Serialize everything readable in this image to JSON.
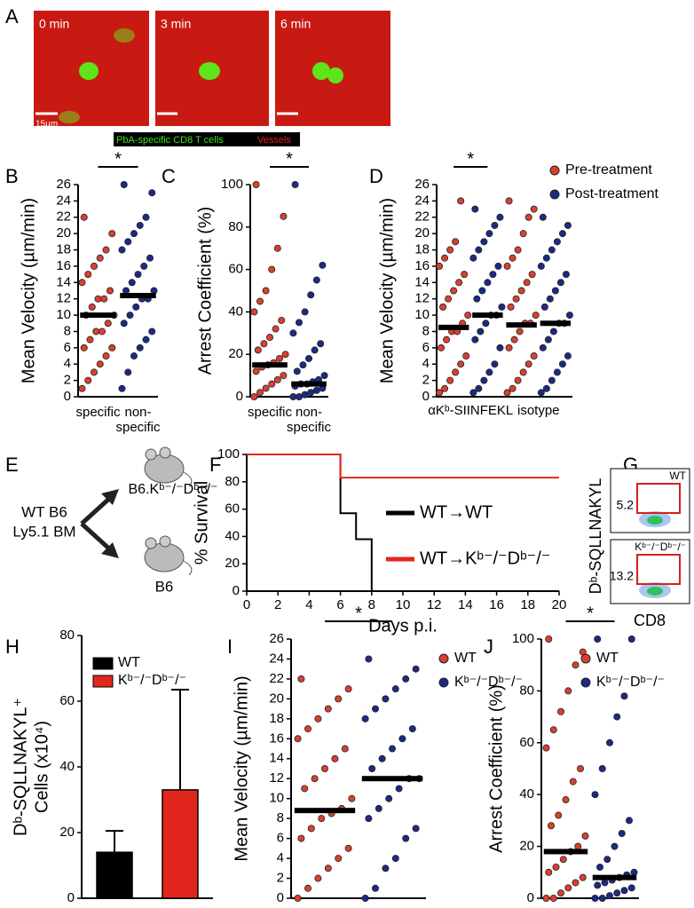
{
  "panel_a": {
    "label": "A",
    "frames": [
      "0 min",
      "3 min",
      "6 min"
    ],
    "scale": "15µm",
    "legend": [
      "PbA-specific CD8 T cells",
      "Vessels"
    ]
  },
  "panel_e": {
    "label": "E",
    "donor": [
      "WT B6",
      "Ly5.1 BM"
    ],
    "recipients": [
      "B6.Kᵇ⁻/⁻Dᵇ⁻/⁻",
      "B6"
    ]
  },
  "panel_g": {
    "label": "G",
    "ylabel": "Dᵇ-SQLLNAKYL",
    "xlabel": "CD8",
    "plots": [
      {
        "label": "WT",
        "gate": 5.2
      },
      {
        "label": "Kᵇ⁻/⁻Dᵇ⁻/⁻",
        "gate": 13.2
      }
    ]
  },
  "chart_data": [
    {
      "type": "dot",
      "panel": "B",
      "ylabel": "Mean Velocity (µm/min)",
      "ylim": [
        0,
        26
      ],
      "yticks": [
        0,
        2,
        4,
        6,
        8,
        10,
        12,
        14,
        16,
        18,
        20,
        22,
        24,
        26
      ],
      "significance": "*",
      "groups": [
        {
          "label": "specific",
          "color": "#d9402f",
          "median": 10,
          "values": [
            1,
            2,
            3,
            4,
            5,
            6,
            6,
            7,
            8,
            8,
            9,
            10,
            10,
            11,
            12,
            12,
            13,
            14,
            15,
            16,
            17,
            18,
            20,
            22
          ]
        },
        {
          "label": "non-specific",
          "color": "#1c2a86",
          "median": 12.4,
          "values": [
            1,
            3,
            5,
            6,
            7,
            8,
            9,
            10,
            11,
            12,
            12,
            13,
            13,
            14,
            15,
            16,
            17,
            18,
            19,
            20,
            21,
            22,
            25,
            26
          ]
        }
      ]
    },
    {
      "type": "dot",
      "panel": "C",
      "ylabel": "Arrest Coefficient (%)",
      "ylim": [
        0,
        100
      ],
      "yticks": [
        0,
        20,
        40,
        60,
        80,
        100
      ],
      "significance": "*",
      "groups": [
        {
          "label": "specific",
          "color": "#d9402f",
          "median": 15,
          "values": [
            0,
            2,
            4,
            6,
            8,
            10,
            12,
            14,
            15,
            16,
            18,
            20,
            22,
            25,
            28,
            32,
            36,
            40,
            45,
            50,
            60,
            70,
            85,
            100
          ]
        },
        {
          "label": "non-specific",
          "color": "#1c2a86",
          "median": 6,
          "values": [
            0,
            0,
            1,
            2,
            3,
            4,
            5,
            6,
            6,
            7,
            8,
            10,
            12,
            15,
            18,
            22,
            25,
            30,
            35,
            40,
            48,
            55,
            62,
            100
          ]
        }
      ]
    },
    {
      "type": "grouped-dot",
      "panel": "D",
      "ylabel": "Mean Velocity (µm/min)",
      "ylim": [
        0,
        26
      ],
      "yticks": [
        0,
        2,
        4,
        6,
        8,
        10,
        12,
        14,
        16,
        18,
        20,
        22,
        24,
        26
      ],
      "significance": "*",
      "categories": [
        "αKᵇ-SIINFEKL",
        "isotype"
      ],
      "series": [
        {
          "name": "Pre-treatment",
          "color": "#d9402f",
          "median": [
            8.5,
            8.8
          ],
          "values": [
            [
              0.5,
              1,
              2,
              3,
              4,
              5,
              6,
              7,
              8,
              8,
              9,
              10,
              11,
              12,
              13,
              14,
              15,
              16,
              17,
              18,
              19,
              24
            ],
            [
              0.5,
              1,
              2,
              3,
              4,
              5,
              6,
              7,
              8,
              9,
              9,
              10,
              11,
              12,
              13,
              14,
              15,
              16,
              17,
              18,
              20,
              22,
              23,
              24
            ]
          ]
        },
        {
          "name": "Post-treatment",
          "color": "#1c2a86",
          "median": [
            10,
            9
          ],
          "values": [
            [
              0.5,
              1,
              2,
              3,
              4,
              6,
              7,
              8,
              9,
              10,
              10,
              11,
              12,
              13,
              14,
              15,
              16,
              17,
              18,
              19,
              20,
              21,
              22,
              23
            ],
            [
              0.5,
              1,
              2,
              3,
              4,
              5,
              6,
              7,
              8,
              9,
              9,
              10,
              11,
              12,
              13,
              14,
              15,
              16,
              17,
              18,
              19,
              20,
              21,
              22
            ]
          ]
        }
      ]
    },
    {
      "type": "line",
      "panel": "F",
      "ylabel": "% Survival",
      "xlabel": "Days p.i.",
      "xlim": [
        0,
        20
      ],
      "xticks": [
        0,
        2,
        4,
        6,
        8,
        10,
        12,
        14,
        16,
        18,
        20
      ],
      "ylim": [
        0,
        100
      ],
      "yticks": [
        0,
        20,
        40,
        60,
        80,
        100
      ],
      "series": [
        {
          "name": "WT→WT",
          "color": "#000000",
          "x": [
            0,
            6,
            6,
            7,
            7,
            8,
            8
          ],
          "values": [
            100,
            100,
            57,
            57,
            38,
            38,
            0
          ]
        },
        {
          "name": "WT→Kᵇ⁻/⁻Dᵇ⁻/⁻",
          "color": "#e3261d",
          "x": [
            0,
            6,
            6,
            20
          ],
          "values": [
            100,
            100,
            83,
            83
          ]
        }
      ]
    },
    {
      "type": "bar",
      "panel": "H",
      "ylabel": [
        "Dᵇ-SQLLNAKYL⁺",
        "Cells (x10⁴)"
      ],
      "ylim": [
        0,
        80
      ],
      "yticks": [
        0,
        20,
        40,
        60,
        80
      ],
      "categories": [
        "WT",
        "Kᵇ⁻/⁻Dᵇ⁻/⁻"
      ],
      "colors": [
        "#000000",
        "#e3261d"
      ],
      "values": [
        14,
        33
      ],
      "errors": [
        6.5,
        30.5
      ]
    },
    {
      "type": "dot",
      "panel": "I",
      "ylabel": "Mean Velocity (µm/min)",
      "ylim": [
        0,
        26
      ],
      "yticks": [
        0,
        2,
        4,
        6,
        8,
        10,
        12,
        14,
        16,
        18,
        20,
        22,
        24,
        26
      ],
      "significance": "*",
      "groups": [
        {
          "name": "WT",
          "color": "#d9402f",
          "median": 8.8,
          "values": [
            0,
            1,
            2,
            3,
            4,
            5,
            6,
            7,
            8,
            8.5,
            9,
            10,
            11,
            12,
            13,
            14,
            15,
            16,
            17,
            18,
            19,
            20,
            21,
            22
          ]
        },
        {
          "name": "Kᵇ⁻/⁻Dᵇ⁻/⁻",
          "color": "#1c2a86",
          "median": 12,
          "values": [
            0,
            1,
            3,
            4,
            6,
            7,
            8,
            9,
            10,
            11,
            12,
            12,
            13,
            14,
            15,
            16,
            17,
            18,
            19,
            20,
            21,
            22,
            23,
            24
          ]
        }
      ]
    },
    {
      "type": "dot",
      "panel": "J",
      "ylabel": "Arrest Coefficient (%)",
      "ylim": [
        0,
        100
      ],
      "yticks": [
        0,
        20,
        40,
        60,
        80,
        100
      ],
      "significance": "*",
      "groups": [
        {
          "name": "WT",
          "color": "#d9402f",
          "median": 18,
          "values": [
            0,
            0,
            2,
            4,
            6,
            8,
            10,
            12,
            15,
            18,
            20,
            24,
            28,
            32,
            38,
            45,
            50,
            58,
            65,
            72,
            80,
            90,
            95,
            100
          ]
        },
        {
          "name": "Kᵇ⁻/⁻Dᵇ⁻/⁻",
          "color": "#1c2a86",
          "median": 8,
          "values": [
            0,
            0,
            1,
            2,
            3,
            4,
            5,
            6,
            7,
            8,
            9,
            10,
            12,
            15,
            20,
            25,
            30,
            40,
            50,
            60,
            70,
            78,
            100,
            100
          ]
        }
      ]
    }
  ]
}
